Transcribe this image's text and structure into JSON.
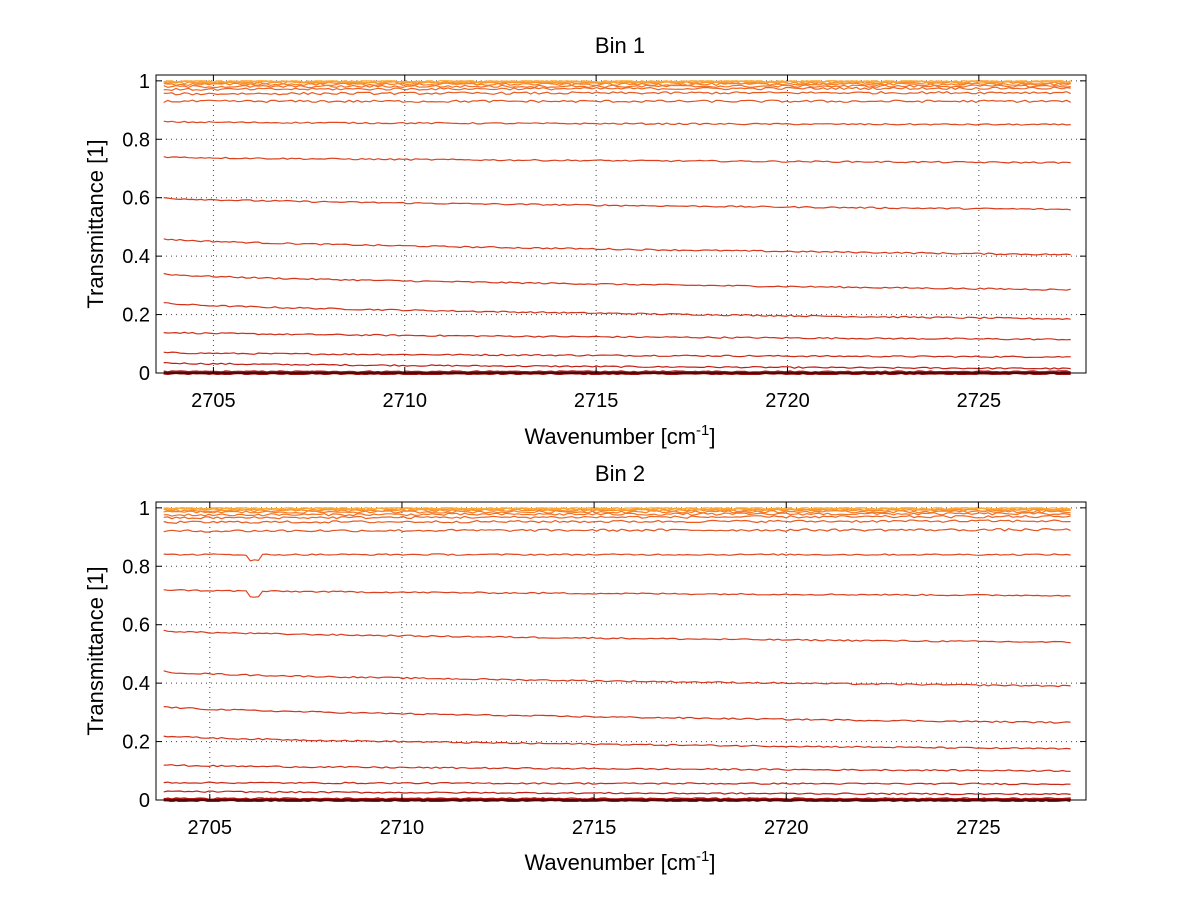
{
  "chart_data": [
    {
      "type": "line",
      "title": "Bin 1",
      "xlabel": "Wavenumber [cm",
      "xlabel_sup": "-1",
      "xlabel_end": "]",
      "ylabel": "Transmittance [1]",
      "xlim": [
        2703.5,
        2727.8
      ],
      "ylim": [
        0,
        1.02
      ],
      "xticks": [
        2705,
        2710,
        2715,
        2720,
        2725
      ],
      "yticks": [
        0,
        0.2,
        0.4,
        0.6,
        0.8,
        1
      ],
      "ytick_labels": [
        "0",
        "0.2",
        "0.4",
        "0.6",
        "0.8",
        "1"
      ],
      "grid": true,
      "x_range_data": [
        2703.7,
        2727.4
      ],
      "series_levels": [
        {
          "start": 0.0,
          "end": 0.0,
          "color": "#a01010"
        },
        {
          "start": 0.005,
          "end": 0.005,
          "color": "#b01512"
        },
        {
          "start": 0.035,
          "end": 0.015,
          "color": "#c01e14"
        },
        {
          "start": 0.07,
          "end": 0.055,
          "color": "#cc2816"
        },
        {
          "start": 0.14,
          "end": 0.115,
          "color": "#d02e18"
        },
        {
          "start": 0.24,
          "end": 0.185,
          "color": "#d2321a"
        },
        {
          "start": 0.34,
          "end": 0.285,
          "color": "#d4361a"
        },
        {
          "start": 0.46,
          "end": 0.405,
          "color": "#d8381c"
        },
        {
          "start": 0.6,
          "end": 0.56,
          "color": "#da3c1c"
        },
        {
          "start": 0.74,
          "end": 0.72,
          "color": "#dc401e"
        },
        {
          "start": 0.86,
          "end": 0.85,
          "color": "#e0481e"
        },
        {
          "start": 0.93,
          "end": 0.93,
          "color": "#e45220"
        },
        {
          "start": 0.955,
          "end": 0.96,
          "color": "#e85a22"
        },
        {
          "start": 0.97,
          "end": 0.975,
          "color": "#ec6424"
        },
        {
          "start": 0.98,
          "end": 0.982,
          "color": "#f07026"
        },
        {
          "start": 0.988,
          "end": 0.988,
          "color": "#f47c28"
        },
        {
          "start": 0.993,
          "end": 0.993,
          "color": "#f8882a"
        },
        {
          "start": 0.996,
          "end": 0.996,
          "color": "#fa942c"
        },
        {
          "start": 0.998,
          "end": 0.998,
          "color": "#fca02e"
        },
        {
          "start": 0.999,
          "end": 0.999,
          "color": "#fcac30"
        }
      ]
    },
    {
      "type": "line",
      "title": "Bin 2",
      "xlabel": "Wavenumber [cm",
      "xlabel_sup": "-1",
      "xlabel_end": "]",
      "ylabel": "Transmittance [1]",
      "xlim": [
        2703.6,
        2727.8
      ],
      "ylim": [
        0,
        1.02
      ],
      "xticks": [
        2705,
        2710,
        2715,
        2720,
        2725
      ],
      "yticks": [
        0,
        0.2,
        0.4,
        0.6,
        0.8,
        1
      ],
      "ytick_labels": [
        "0",
        "0.2",
        "0.4",
        "0.6",
        "0.8",
        "1"
      ],
      "grid": true,
      "x_range_data": [
        2703.8,
        2727.4
      ],
      "series_levels": [
        {
          "start": 0.0,
          "end": 0.0,
          "color": "#a01010"
        },
        {
          "start": 0.005,
          "end": 0.005,
          "color": "#b01512"
        },
        {
          "start": 0.03,
          "end": 0.02,
          "color": "#c01e14"
        },
        {
          "start": 0.06,
          "end": 0.055,
          "color": "#cc2816"
        },
        {
          "start": 0.12,
          "end": 0.1,
          "color": "#d02e18"
        },
        {
          "start": 0.22,
          "end": 0.175,
          "color": "#d2321a"
        },
        {
          "start": 0.32,
          "end": 0.265,
          "color": "#d4361a"
        },
        {
          "start": 0.44,
          "end": 0.39,
          "color": "#d8381c"
        },
        {
          "start": 0.58,
          "end": 0.54,
          "color": "#da3c1c"
        },
        {
          "start": 0.72,
          "end": 0.7,
          "color": "#dc401e"
        },
        {
          "start": 0.84,
          "end": 0.84,
          "color": "#e0481e"
        },
        {
          "start": 0.92,
          "end": 0.925,
          "color": "#e45220"
        },
        {
          "start": 0.95,
          "end": 0.955,
          "color": "#e85a22"
        },
        {
          "start": 0.965,
          "end": 0.97,
          "color": "#ec6424"
        },
        {
          "start": 0.975,
          "end": 0.98,
          "color": "#f07026"
        },
        {
          "start": 0.985,
          "end": 0.987,
          "color": "#f47c28"
        },
        {
          "start": 0.99,
          "end": 0.992,
          "color": "#f8882a"
        },
        {
          "start": 0.995,
          "end": 0.995,
          "color": "#fa942c"
        },
        {
          "start": 0.997,
          "end": 0.997,
          "color": "#fca02e"
        },
        {
          "start": 0.999,
          "end": 0.999,
          "color": "#fcac30"
        }
      ]
    }
  ]
}
